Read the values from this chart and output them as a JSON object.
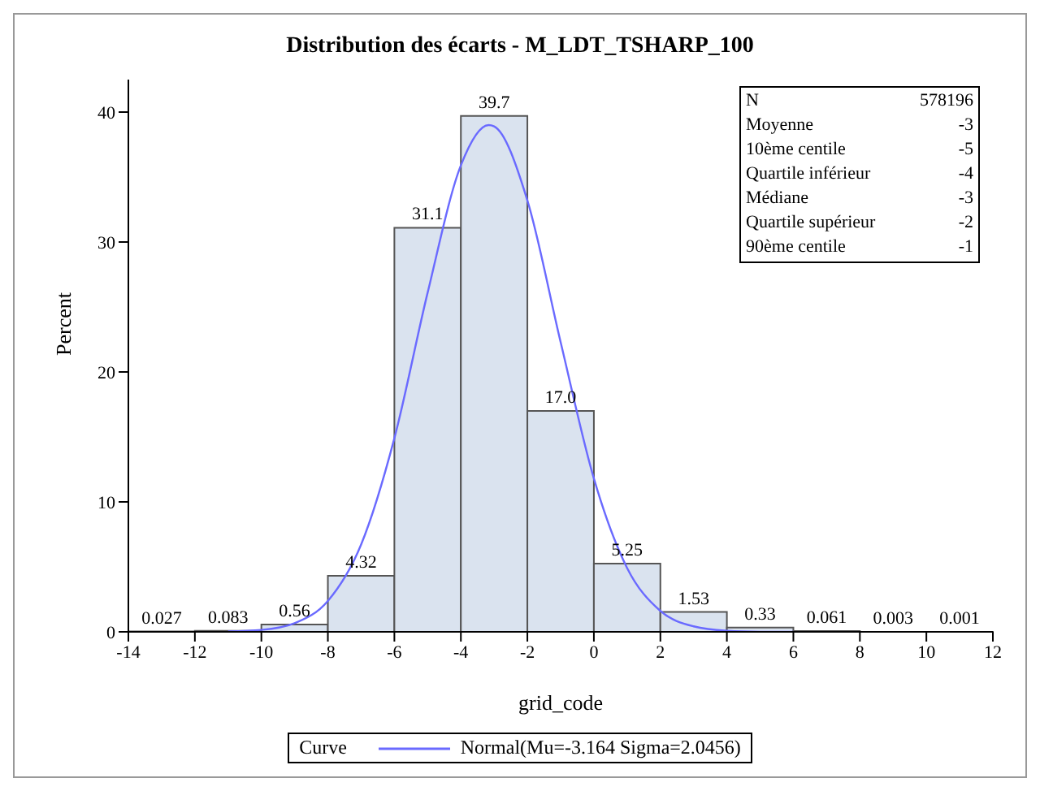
{
  "chart_data": {
    "type": "histogram",
    "title": "Distribution des écarts - M_LDT_TSHARP_100",
    "xlabel": "grid_code",
    "ylabel": "Percent",
    "legend_title": "Curve",
    "bins": [
      -14,
      -12,
      -10,
      -8,
      -6,
      -4,
      -2,
      0,
      2,
      4,
      6,
      8,
      10,
      12
    ],
    "values": [
      0.027,
      0.083,
      0.56,
      4.32,
      31.1,
      39.7,
      17.0,
      5.25,
      1.53,
      0.33,
      0.061,
      0.003,
      0.001
    ],
    "value_labels": [
      "0.027",
      "0.083",
      "0.56",
      "4.32",
      "31.1",
      "39.7",
      "17.0",
      "5.25",
      "1.53",
      "0.33",
      "0.061",
      "0.003",
      "0.001"
    ],
    "color": "#dae3ef",
    "series": [
      {
        "type": "line",
        "name": "Normal(Mu=-3.164 Sigma=2.0456)",
        "color": "#6a6aff",
        "x": [
          -11,
          -10,
          -9,
          -8,
          -7,
          -6,
          -5,
          -4,
          -3.164,
          -3,
          -2,
          -1,
          0,
          1,
          2,
          3,
          4,
          5,
          6
        ],
        "values": [
          0.03,
          0.15,
          0.67,
          2.38,
          6.72,
          14.9,
          26.1,
          35.9,
          39.0,
          38.9,
          33.2,
          22.3,
          11.8,
          4.91,
          1.61,
          0.42,
          0.085,
          0.01,
          0.001
        ]
      }
    ],
    "xlim": [
      -14,
      12
    ],
    "xticks": [
      -14,
      -12,
      -10,
      -8,
      -6,
      -4,
      -2,
      0,
      2,
      4,
      6,
      8,
      10,
      12
    ],
    "ylim": [
      0,
      42.5
    ],
    "yticks": [
      0,
      10,
      20,
      30,
      40
    ],
    "legend": "bottom",
    "grid": false,
    "annotations": [
      "N",
      "578196",
      "Moyenne",
      "-3",
      "10ème centile",
      "-5",
      "Quartile inférieur",
      "-4",
      "Médiane",
      "-3",
      "Quartile supérieur",
      "-2",
      "90ème centile",
      "-1"
    ]
  }
}
